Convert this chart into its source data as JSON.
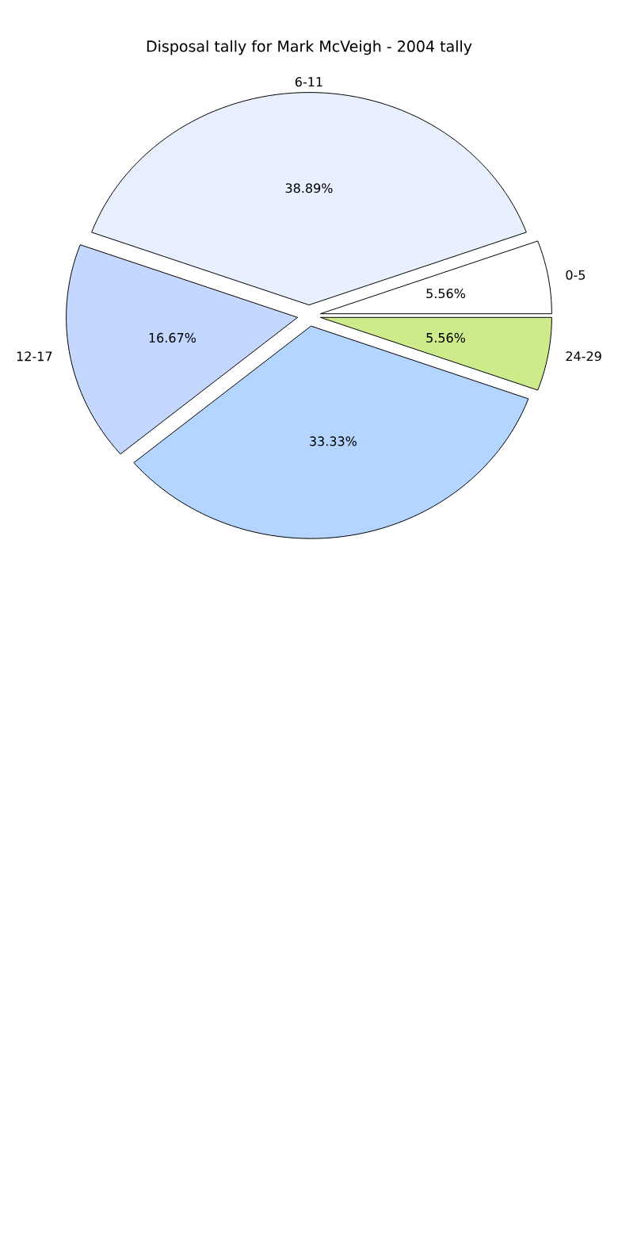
{
  "chart_data": {
    "type": "pie",
    "title": "Disposal tally for Mark McVeigh - 2004 tally",
    "categories": [
      "0-5",
      "6-11",
      "12-17",
      null,
      "24-29"
    ],
    "values": [
      5.56,
      38.89,
      16.67,
      33.33,
      5.56
    ],
    "colors": [
      "#ffffff",
      "#e8f0ff",
      "#c4d8ff",
      "#b3d5ff",
      "#cdeb8b"
    ],
    "value_labels": [
      "5.56%",
      "38.89%",
      "16.67%",
      "33.33%",
      "5.56%"
    ]
  }
}
